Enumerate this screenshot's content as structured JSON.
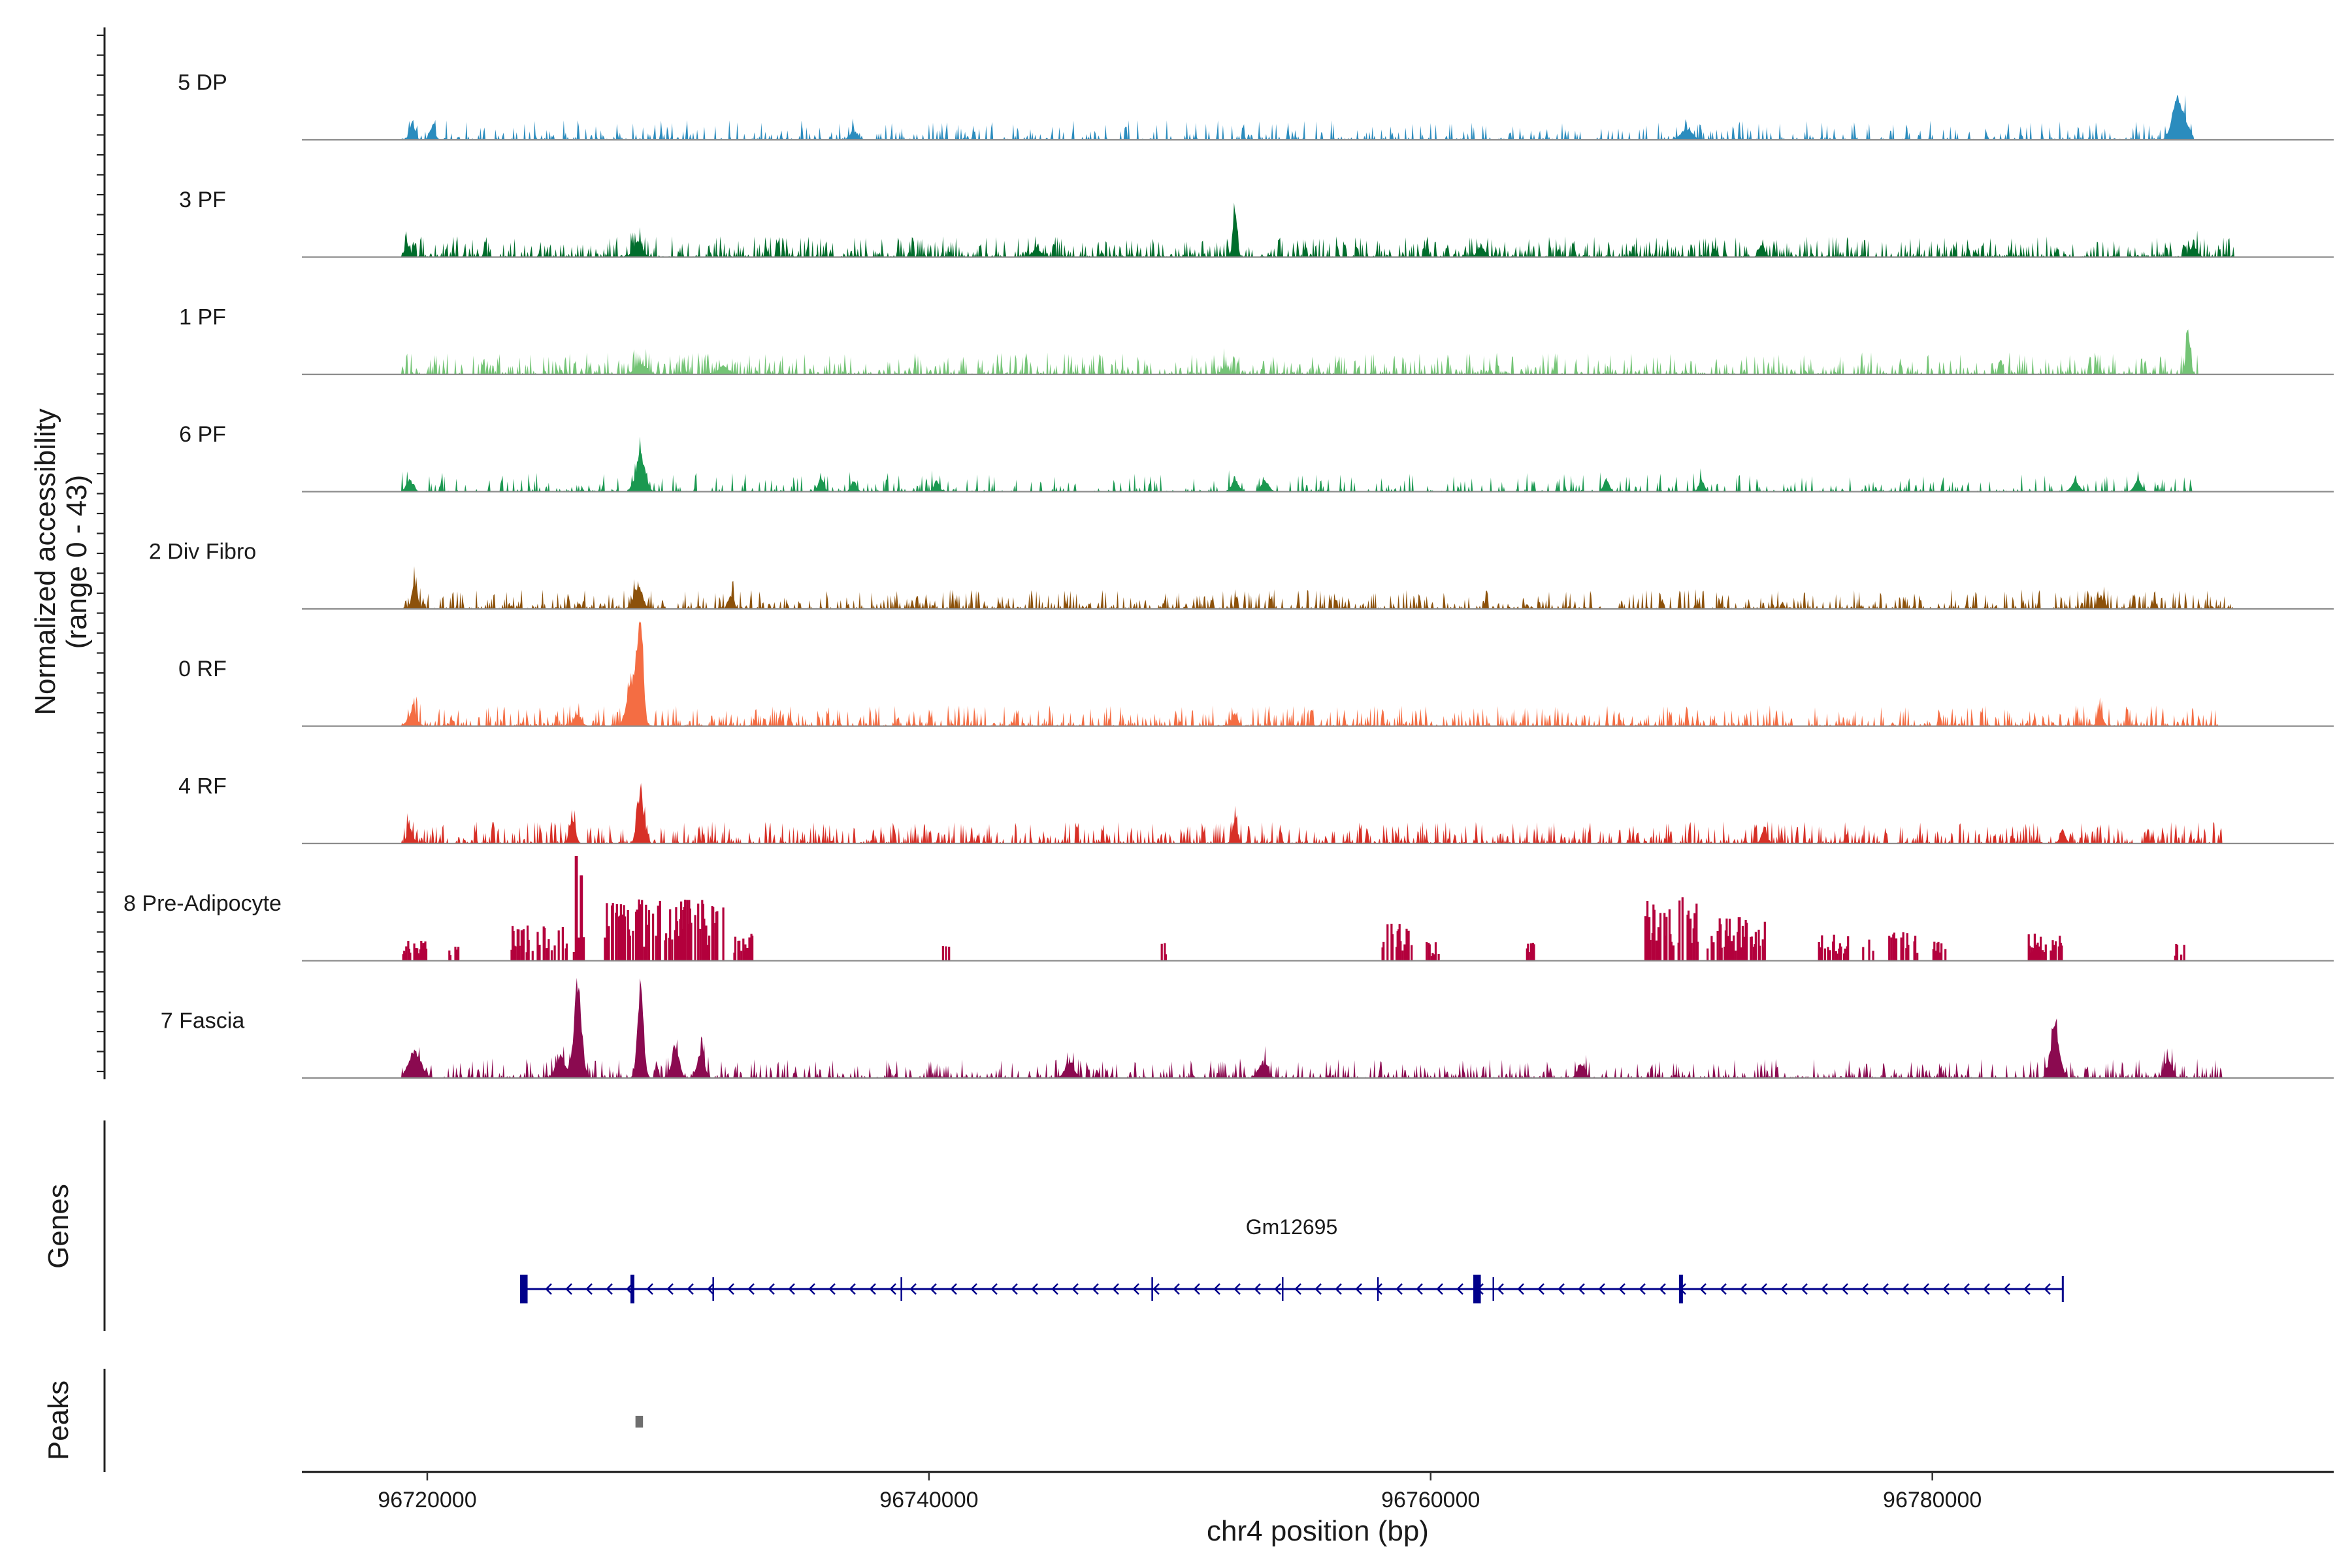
{
  "chart_data": {
    "type": "area",
    "title": "",
    "ylabel": "Normalized accessibility",
    "ylabel_range": "(range 0 - 43)",
    "xlabel": "chr4 position (bp)",
    "xlim": [
      96715000,
      96796000
    ],
    "ylim": [
      0,
      43
    ],
    "xticks": [
      96720000,
      96740000,
      96760000,
      96780000
    ],
    "xtick_labels": [
      "96720000",
      "96740000",
      "96760000",
      "96780000"
    ],
    "tracks": [
      {
        "name": "5 DP",
        "color": "#2b8cbe",
        "range": [
          96719000,
          96790400
        ],
        "seed": 11,
        "base_frac": 0.08,
        "density": 0.38,
        "peaks": [
          [
            96719400,
            8,
            150
          ],
          [
            96720200,
            6,
            150
          ],
          [
            96737000,
            4,
            200
          ],
          [
            96770200,
            5,
            300
          ],
          [
            96789700,
            14,
            250
          ],
          [
            96790000,
            10,
            300
          ]
        ]
      },
      {
        "name": "3 PF",
        "color": "#006d2c",
        "range": [
          96719000,
          96792000
        ],
        "seed": 23,
        "base_frac": 0.1,
        "density": 0.6,
        "peaks": [
          [
            96719200,
            6,
            150
          ],
          [
            96728400,
            7,
            250
          ],
          [
            96744300,
            4,
            200
          ],
          [
            96752200,
            22,
            120
          ],
          [
            96762000,
            5,
            200
          ],
          [
            96773200,
            6,
            150
          ],
          [
            96790400,
            5,
            200
          ]
        ]
      },
      {
        "name": "1 PF",
        "color": "#74c476",
        "range": [
          96719000,
          96790600
        ],
        "seed": 37,
        "base_frac": 0.12,
        "density": 0.55,
        "peaks": [
          [
            96728500,
            5,
            300
          ],
          [
            96731800,
            4,
            250
          ],
          [
            96751800,
            3,
            200
          ],
          [
            96790200,
            18,
            120
          ]
        ]
      },
      {
        "name": "6 PF",
        "color": "#1a9850",
        "range": [
          96719000,
          96790500
        ],
        "seed": 41,
        "base_frac": 0.07,
        "density": 0.3,
        "peaks": [
          [
            96728500,
            17,
            250
          ],
          [
            96719300,
            5,
            200
          ],
          [
            96735700,
            6,
            150
          ],
          [
            96737000,
            5,
            150
          ],
          [
            96740300,
            5,
            150
          ],
          [
            96752200,
            5,
            200
          ],
          [
            96753400,
            5,
            200
          ],
          [
            96767000,
            6,
            150
          ],
          [
            96770800,
            5,
            150
          ],
          [
            96785700,
            5,
            200
          ],
          [
            96788200,
            5,
            200
          ]
        ]
      },
      {
        "name": "2 Div Fibro",
        "color": "#8c510a",
        "range": [
          96719000,
          96792000
        ],
        "seed": 53,
        "base_frac": 0.08,
        "density": 0.55,
        "peaks": [
          [
            96719500,
            11,
            150
          ],
          [
            96728400,
            10,
            250
          ],
          [
            96732100,
            6,
            150
          ],
          [
            96786700,
            6,
            150
          ]
        ]
      },
      {
        "name": "0 RF",
        "color": "#f46d43",
        "range": [
          96719000,
          96791400
        ],
        "seed": 67,
        "base_frac": 0.1,
        "density": 0.55,
        "peaks": [
          [
            96728500,
            43,
            150
          ],
          [
            96728200,
            22,
            300
          ],
          [
            96719400,
            6,
            250
          ],
          [
            96726000,
            5,
            200
          ],
          [
            96752200,
            6,
            150
          ],
          [
            96786700,
            6,
            150
          ]
        ]
      },
      {
        "name": "4 RF",
        "color": "#d73027",
        "range": [
          96719000,
          96791600
        ],
        "seed": 79,
        "base_frac": 0.12,
        "density": 0.6,
        "peaks": [
          [
            96728500,
            24,
            180
          ],
          [
            96725800,
            12,
            150
          ],
          [
            96719300,
            8,
            150
          ],
          [
            96752200,
            8,
            150
          ],
          [
            96773300,
            7,
            150
          ],
          [
            96785200,
            6,
            150
          ]
        ]
      },
      {
        "name": "8 Pre-Adipocyte",
        "color": "#b3003c",
        "range": [
          96719000,
          96790400
        ],
        "seed": 97,
        "base_frac": 0,
        "density": 1,
        "bars": true,
        "clusters": [
          [
            96719000,
            96720000,
            3
          ],
          [
            96720800,
            96721200,
            1
          ],
          [
            96723300,
            96725600,
            6
          ],
          [
            96725800,
            96726200,
            5
          ],
          [
            96727000,
            96731800,
            12
          ],
          [
            96732200,
            96733000,
            4
          ],
          [
            96740500,
            96740800,
            2
          ],
          [
            96749200,
            96749400,
            2
          ],
          [
            96758000,
            96759200,
            7
          ],
          [
            96759800,
            96760300,
            2
          ],
          [
            96763800,
            96764100,
            2
          ],
          [
            96768400,
            96770600,
            12
          ],
          [
            96771000,
            96773300,
            8
          ],
          [
            96775400,
            96776600,
            4
          ],
          [
            96777200,
            96777600,
            3
          ],
          [
            96778200,
            96779400,
            5
          ],
          [
            96780000,
            96780500,
            2
          ],
          [
            96783800,
            96785200,
            4
          ],
          [
            96789600,
            96790000,
            2
          ]
        ],
        "highlights": [
          [
            96725900,
            43
          ],
          [
            96726100,
            35
          ],
          [
            96770000,
            26
          ],
          [
            96728300,
            20
          ],
          [
            96731500,
            20
          ]
        ]
      },
      {
        "name": "7 Fascia",
        "color": "#8b0a50",
        "range": [
          96719000,
          96791600
        ],
        "seed": 103,
        "base_frac": 0.08,
        "density": 0.45,
        "peaks": [
          [
            96726000,
            41,
            220
          ],
          [
            96728500,
            41,
            170
          ],
          [
            96729900,
            15,
            200
          ],
          [
            96730900,
            12,
            200
          ],
          [
            96719500,
            12,
            350
          ],
          [
            96725300,
            10,
            250
          ],
          [
            96745600,
            7,
            250
          ],
          [
            96753300,
            7,
            250
          ],
          [
            96766000,
            6,
            200
          ],
          [
            96784900,
            22,
            250
          ],
          [
            96789400,
            9,
            200
          ]
        ]
      }
    ],
    "genes": {
      "track_label": "Genes",
      "name": "Gm12695",
      "strand": "-",
      "start": 96723700,
      "end": 96785200,
      "exons": [
        [
          96723700,
          96724000
        ],
        [
          96728100,
          96728250
        ],
        [
          96761700,
          96762000
        ],
        [
          96769900,
          96770050
        ]
      ],
      "minor_exons": [
        96731400,
        96738900,
        96748900,
        96754100,
        96757900,
        96762500
      ]
    },
    "peaks_track": {
      "track_label": "Peaks",
      "regions": [
        [
          96728300,
          96728600
        ]
      ]
    }
  }
}
